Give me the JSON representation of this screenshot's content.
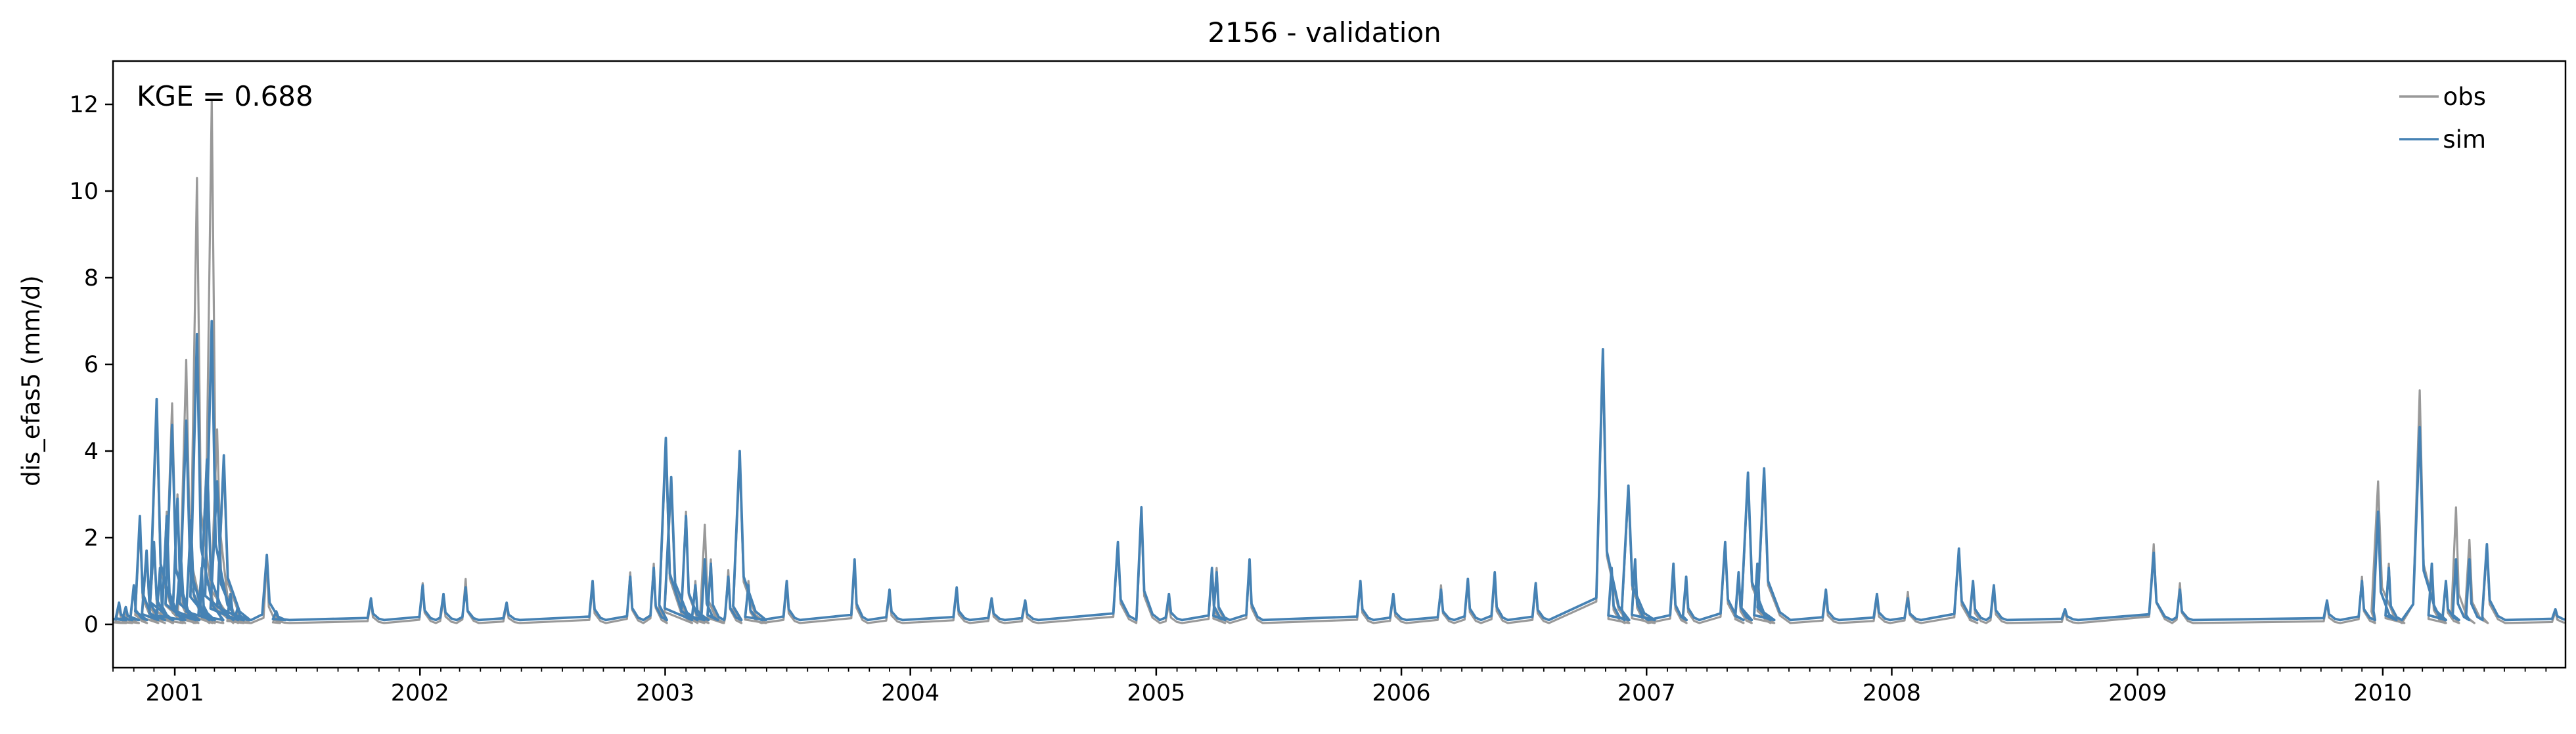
{
  "chart_data": {
    "type": "line",
    "title": "2156 - validation",
    "xlabel": "",
    "ylabel": "dis_efas5 (mm/d)",
    "annotation": "KGE = 0.688",
    "x_range": [
      "2000-10-01",
      "2010-09-30"
    ],
    "ylim": [
      -1,
      13
    ],
    "y_ticks": [
      0,
      2,
      4,
      6,
      8,
      10,
      12
    ],
    "x_tick_labels": [
      "2001",
      "2002",
      "2003",
      "2004",
      "2005",
      "2006",
      "2007",
      "2008",
      "2009",
      "2010"
    ],
    "legend_position": "top-right",
    "grid": false,
    "baseline": {
      "obs": 0.03,
      "sim": 0.1
    },
    "series": [
      {
        "name": "obs",
        "color": "#999999",
        "points": [
          [
            "2000-10-01",
            0.05
          ],
          [
            "2000-10-10",
            0.4
          ],
          [
            "2000-10-20",
            0.3
          ],
          [
            "2000-11-01",
            0.9
          ],
          [
            "2000-11-10",
            2.3
          ],
          [
            "2000-11-20",
            1.6
          ],
          [
            "2000-12-01",
            1.8
          ],
          [
            "2000-12-05",
            4.9
          ],
          [
            "2000-12-10",
            1.2
          ],
          [
            "2000-12-20",
            2.6
          ],
          [
            "2000-12-28",
            5.1
          ],
          [
            "2001-01-05",
            3.0
          ],
          [
            "2001-01-10",
            1.5
          ],
          [
            "2001-01-18",
            6.1
          ],
          [
            "2001-01-25",
            2.5
          ],
          [
            "2001-02-03",
            10.3
          ],
          [
            "2001-02-10",
            1.2
          ],
          [
            "2001-02-18",
            4.0
          ],
          [
            "2001-02-25",
            12.1
          ],
          [
            "2001-03-05",
            4.5
          ],
          [
            "2001-03-15",
            3.7
          ],
          [
            "2001-03-25",
            0.6
          ],
          [
            "2001-04-05",
            0.3
          ],
          [
            "2001-05-18",
            1.5
          ],
          [
            "2001-06-01",
            0.2
          ],
          [
            "2001-10-20",
            0.55
          ],
          [
            "2002-01-05",
            0.95
          ],
          [
            "2002-02-05",
            0.6
          ],
          [
            "2002-03-10",
            1.05
          ],
          [
            "2002-05-10",
            0.45
          ],
          [
            "2002-09-15",
            0.9
          ],
          [
            "2002-11-10",
            1.2
          ],
          [
            "2002-12-15",
            1.4
          ],
          [
            "2003-01-02",
            4.1
          ],
          [
            "2003-01-10",
            3.2
          ],
          [
            "2003-02-01",
            2.6
          ],
          [
            "2003-02-15",
            1.0
          ],
          [
            "2003-03-01",
            2.3
          ],
          [
            "2003-03-10",
            1.5
          ],
          [
            "2003-04-05",
            1.25
          ],
          [
            "2003-04-22",
            3.8
          ],
          [
            "2003-05-05",
            1.0
          ],
          [
            "2003-07-01",
            0.9
          ],
          [
            "2003-10-10",
            1.4
          ],
          [
            "2003-12-01",
            0.7
          ],
          [
            "2004-03-10",
            0.8
          ],
          [
            "2004-05-01",
            0.6
          ],
          [
            "2004-06-20",
            0.5
          ],
          [
            "2004-11-05",
            1.8
          ],
          [
            "2004-12-10",
            2.5
          ],
          [
            "2005-01-20",
            0.5
          ],
          [
            "2005-03-25",
            1.2
          ],
          [
            "2005-04-01",
            1.3
          ],
          [
            "2005-05-20",
            1.4
          ],
          [
            "2005-11-01",
            0.95
          ],
          [
            "2005-12-20",
            0.65
          ],
          [
            "2006-03-01",
            0.9
          ],
          [
            "2006-04-10",
            1.0
          ],
          [
            "2006-05-20",
            1.1
          ],
          [
            "2006-07-20",
            0.9
          ],
          [
            "2006-10-28",
            6.2
          ],
          [
            "2006-11-10",
            1.2
          ],
          [
            "2006-12-05",
            3.1
          ],
          [
            "2006-12-15",
            1.4
          ],
          [
            "2007-02-10",
            1.3
          ],
          [
            "2007-03-01",
            1.0
          ],
          [
            "2007-04-28",
            1.8
          ],
          [
            "2007-05-18",
            1.1
          ],
          [
            "2007-06-01",
            3.4
          ],
          [
            "2007-06-15",
            1.3
          ],
          [
            "2007-06-25",
            3.5
          ],
          [
            "2007-09-25",
            0.7
          ],
          [
            "2007-12-10",
            0.6
          ],
          [
            "2008-01-25",
            0.75
          ],
          [
            "2008-04-10",
            1.65
          ],
          [
            "2008-05-01",
            0.9
          ],
          [
            "2008-06-01",
            0.8
          ],
          [
            "2008-09-15",
            0.3
          ],
          [
            "2009-01-25",
            1.85
          ],
          [
            "2009-03-05",
            0.95
          ],
          [
            "2009-10-10",
            0.5
          ],
          [
            "2009-12-01",
            1.1
          ],
          [
            "2009-12-25",
            3.3
          ],
          [
            "2010-01-10",
            1.4
          ],
          [
            "2010-02-25",
            5.4
          ],
          [
            "2010-03-15",
            1.2
          ],
          [
            "2010-04-05",
            0.95
          ],
          [
            "2010-04-20",
            2.7
          ],
          [
            "2010-05-10",
            1.95
          ],
          [
            "2010-06-05",
            1.75
          ],
          [
            "2010-09-15",
            0.3
          ]
        ]
      },
      {
        "name": "sim",
        "color": "#4682b4",
        "points": [
          [
            "2000-10-01",
            0.1
          ],
          [
            "2000-10-10",
            0.5
          ],
          [
            "2000-10-20",
            0.4
          ],
          [
            "2000-11-01",
            0.9
          ],
          [
            "2000-11-10",
            2.5
          ],
          [
            "2000-11-20",
            1.7
          ],
          [
            "2000-12-01",
            1.9
          ],
          [
            "2000-12-05",
            5.2
          ],
          [
            "2000-12-10",
            1.3
          ],
          [
            "2000-12-20",
            2.5
          ],
          [
            "2000-12-28",
            4.6
          ],
          [
            "2001-01-05",
            2.9
          ],
          [
            "2001-01-10",
            1.6
          ],
          [
            "2001-01-18",
            4.7
          ],
          [
            "2001-01-25",
            2.4
          ],
          [
            "2001-02-03",
            6.7
          ],
          [
            "2001-02-10",
            1.3
          ],
          [
            "2001-02-18",
            3.8
          ],
          [
            "2001-02-25",
            7.0
          ],
          [
            "2001-03-05",
            3.3
          ],
          [
            "2001-03-15",
            3.9
          ],
          [
            "2001-03-25",
            0.7
          ],
          [
            "2001-04-05",
            0.4
          ],
          [
            "2001-05-18",
            1.6
          ],
          [
            "2001-06-01",
            0.3
          ],
          [
            "2001-10-20",
            0.6
          ],
          [
            "2002-01-05",
            0.9
          ],
          [
            "2002-02-05",
            0.7
          ],
          [
            "2002-03-10",
            0.85
          ],
          [
            "2002-05-10",
            0.5
          ],
          [
            "2002-09-15",
            1.0
          ],
          [
            "2002-11-10",
            1.1
          ],
          [
            "2002-12-15",
            1.3
          ],
          [
            "2003-01-02",
            4.3
          ],
          [
            "2003-01-10",
            3.4
          ],
          [
            "2003-02-01",
            2.5
          ],
          [
            "2003-02-15",
            0.9
          ],
          [
            "2003-03-01",
            1.5
          ],
          [
            "2003-03-10",
            1.4
          ],
          [
            "2003-04-05",
            1.1
          ],
          [
            "2003-04-22",
            4.0
          ],
          [
            "2003-05-05",
            0.9
          ],
          [
            "2003-07-01",
            1.0
          ],
          [
            "2003-10-10",
            1.5
          ],
          [
            "2003-12-01",
            0.8
          ],
          [
            "2004-03-10",
            0.85
          ],
          [
            "2004-05-01",
            0.6
          ],
          [
            "2004-06-20",
            0.55
          ],
          [
            "2004-11-05",
            1.9
          ],
          [
            "2004-12-10",
            2.7
          ],
          [
            "2005-01-20",
            0.7
          ],
          [
            "2005-03-25",
            1.3
          ],
          [
            "2005-04-01",
            1.2
          ],
          [
            "2005-05-20",
            1.5
          ],
          [
            "2005-11-01",
            1.0
          ],
          [
            "2005-12-20",
            0.7
          ],
          [
            "2006-03-01",
            0.8
          ],
          [
            "2006-04-10",
            1.05
          ],
          [
            "2006-05-20",
            1.2
          ],
          [
            "2006-07-20",
            0.95
          ],
          [
            "2006-10-28",
            6.35
          ],
          [
            "2006-11-10",
            1.3
          ],
          [
            "2006-12-05",
            3.2
          ],
          [
            "2006-12-15",
            1.5
          ],
          [
            "2007-02-10",
            1.4
          ],
          [
            "2007-03-01",
            1.1
          ],
          [
            "2007-04-28",
            1.9
          ],
          [
            "2007-05-18",
            1.2
          ],
          [
            "2007-06-01",
            3.5
          ],
          [
            "2007-06-15",
            1.4
          ],
          [
            "2007-06-25",
            3.6
          ],
          [
            "2007-09-25",
            0.8
          ],
          [
            "2007-12-10",
            0.7
          ],
          [
            "2008-01-25",
            0.6
          ],
          [
            "2008-04-10",
            1.75
          ],
          [
            "2008-05-01",
            1.0
          ],
          [
            "2008-06-01",
            0.9
          ],
          [
            "2008-09-15",
            0.35
          ],
          [
            "2009-01-25",
            1.65
          ],
          [
            "2009-03-05",
            0.8
          ],
          [
            "2009-10-10",
            0.55
          ],
          [
            "2009-12-01",
            1.0
          ],
          [
            "2009-12-25",
            2.6
          ],
          [
            "2010-01-10",
            1.3
          ],
          [
            "2010-02-25",
            4.55
          ],
          [
            "2010-03-15",
            1.4
          ],
          [
            "2010-04-05",
            1.0
          ],
          [
            "2010-04-20",
            1.5
          ],
          [
            "2010-05-10",
            1.5
          ],
          [
            "2010-06-05",
            1.85
          ],
          [
            "2010-09-15",
            0.35
          ]
        ]
      }
    ]
  }
}
